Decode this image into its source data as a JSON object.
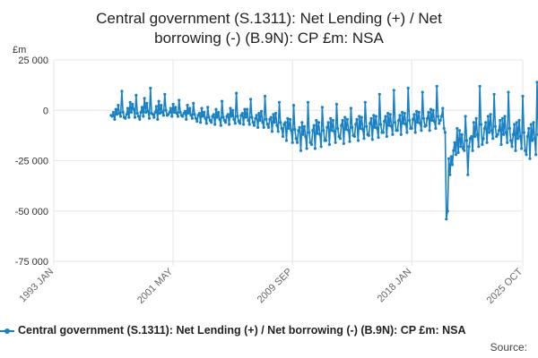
{
  "title_lines": [
    "Central government (S.1311): Net Lending (+) / Net",
    "borrowing (-) (B.9N): CP £m: NSA"
  ],
  "unit_label": "£m",
  "source_label": "Source:",
  "colors": {
    "series": "#1a82c4",
    "grid": "#e6e6e6",
    "axis": "#cccccc"
  },
  "chart_data": {
    "type": "line",
    "title": "Central government (S.1311): Net Lending (+) / Net borrowing (-) (B.9N): CP £m: NSA",
    "ylabel": "£m",
    "ylim": [
      -75000,
      25000
    ],
    "yticks": [
      25000,
      0,
      -25000,
      -50000,
      -75000
    ],
    "ytick_labels": [
      "25 000",
      "0",
      "-25 000",
      "-50 000",
      "-75 000"
    ],
    "xlim": [
      "1993-01",
      "2025-10"
    ],
    "xticks": [
      "1993-01",
      "2001-05",
      "2009-09",
      "2018-01",
      "2025-10"
    ],
    "xtick_labels": [
      "1993 JAN",
      "2001 MAY",
      "2009 SEP",
      "2018 JAN",
      "2025 OCT"
    ],
    "grid": true,
    "legend": "bottom",
    "series": [
      {
        "name": "Central government (S.1311): Net Lending (+) / Net borrowing (-) (B.9N): CP £m: NSA",
        "frequency": "monthly",
        "start": "1997-01",
        "values": [
          -2500,
          -3000,
          -1000,
          -4500,
          500,
          -2000,
          2500,
          -1500,
          -3000,
          9500,
          -1000,
          -3500,
          -4000,
          -2000,
          1000,
          -3500,
          4000,
          -1000,
          3000,
          500,
          -3500,
          7500,
          -1500,
          -3000,
          -4500,
          -1000,
          1500,
          -3000,
          6000,
          -1000,
          3500,
          -500,
          -4000,
          11000,
          -1500,
          -2000,
          -3500,
          -1000,
          2000,
          -4500,
          4500,
          -1500,
          2500,
          -1000,
          -2500,
          8000,
          0,
          -2500,
          -2000,
          -1000,
          1000,
          -3000,
          3000,
          -1000,
          1500,
          -1500,
          -3000,
          5000,
          -1000,
          -2500,
          -3000,
          -1500,
          -500,
          -4500,
          2500,
          -1500,
          1000,
          -2500,
          -4000,
          3500,
          -2000,
          -4000,
          -5500,
          -2500,
          -1500,
          -6000,
          1000,
          -3000,
          -1000,
          -4000,
          -6500,
          1500,
          -3500,
          -5000,
          -6000,
          -3000,
          -2000,
          -7000,
          500,
          -3500,
          -1000,
          -4500,
          -7500,
          4500,
          -3500,
          -5000,
          -6000,
          -3000,
          -2000,
          -7000,
          1000,
          -3000,
          0,
          -4500,
          -6500,
          8500,
          -3000,
          -5500,
          -6500,
          -2500,
          -1500,
          -7000,
          500,
          -3500,
          500,
          -5000,
          -7000,
          5500,
          -3500,
          -6000,
          -7500,
          -4000,
          -2500,
          -8500,
          -1500,
          -5000,
          -500,
          -6000,
          -8500,
          7000,
          -4500,
          -7000,
          -8500,
          -4500,
          -3500,
          -10500,
          -2000,
          -6000,
          -1500,
          -7500,
          -10500,
          4000,
          -6000,
          -9000,
          -13000,
          -7000,
          -6000,
          -15000,
          -4000,
          -9000,
          -4500,
          -10000,
          -16000,
          2500,
          -9500,
          -14000,
          -16000,
          -10000,
          -8500,
          -20000,
          -6000,
          -12000,
          -8000,
          -13000,
          -19000,
          4000,
          -11000,
          -16000,
          -17000,
          -10000,
          -7500,
          -19000,
          -5000,
          -11500,
          -6000,
          -12000,
          -18000,
          1500,
          -10000,
          -15000,
          -15000,
          -8500,
          -6000,
          -17000,
          -4000,
          -10000,
          -5000,
          -10500,
          -16000,
          3000,
          -9000,
          -13000,
          -14000,
          -7500,
          -5000,
          -16500,
          -3500,
          -9500,
          -4500,
          -10000,
          -15500,
          1000,
          -8500,
          -12500,
          -13000,
          -7000,
          -4500,
          -15000,
          -3000,
          -9000,
          -3500,
          -9500,
          -14000,
          4000,
          -8000,
          -12000,
          -12500,
          -6500,
          -4000,
          -14500,
          -2500,
          -8500,
          -3000,
          -9000,
          -13500,
          8000,
          -7000,
          -11000,
          -11000,
          -5500,
          -3000,
          -13000,
          -1500,
          -7500,
          -2000,
          -8000,
          -12000,
          10000,
          -6000,
          -10000,
          -10000,
          -5000,
          -2500,
          -12000,
          -1000,
          -6500,
          -1500,
          -7000,
          -11000,
          11000,
          -5000,
          -9000,
          -9000,
          -4500,
          -2000,
          -11000,
          -500,
          -6000,
          -1000,
          -6500,
          -10000,
          9000,
          -4000,
          -8000,
          -7500,
          -4000,
          -1000,
          -10000,
          500,
          -5000,
          0,
          -5500,
          -9000,
          12000,
          -3000,
          -6500,
          -5000,
          -3000,
          1000,
          -9000,
          -11000,
          -54000,
          -50000,
          -24000,
          -32000,
          -23000,
          -27000,
          -20000,
          -16000,
          -22000,
          -9000,
          -21000,
          -10000,
          -18000,
          -12000,
          -19000,
          -20000,
          -3000,
          -15000,
          -32000,
          -18000,
          -14000,
          -13000,
          -20000,
          -6000,
          -13000,
          -4000,
          -12000,
          -18000,
          12000,
          -7000,
          -17000,
          -14000,
          -9000,
          -6000,
          -16000,
          -3000,
          -11000,
          -2000,
          -10000,
          -14000,
          8000,
          -8000,
          -13000,
          -12000,
          -10000,
          -5000,
          -17000,
          -4000,
          -12000,
          -3000,
          -11000,
          -16000,
          9000,
          -9000,
          -15000,
          -18000,
          -12000,
          -7000,
          -20000,
          -6000,
          -14000,
          -5000,
          -13000,
          -19000,
          7000,
          -11000,
          -20000,
          -22000,
          -13000,
          -9000,
          -24000,
          -7000,
          -15000,
          -6000,
          -14000,
          -22000,
          14000,
          -12000,
          -17000,
          -26000,
          -14000,
          -9000,
          -23000,
          -7000,
          -16000
        ]
      }
    ]
  }
}
